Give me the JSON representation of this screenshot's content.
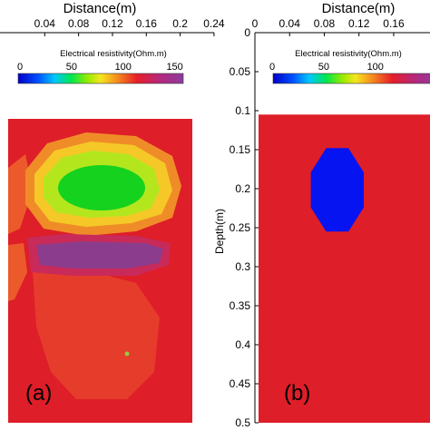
{
  "chart_data": [
    {
      "type": "heatmap",
      "panel_label": "(a)",
      "xlabel": "Distance(m)",
      "x_ticks": [
        "0.04",
        "0.08",
        "0.12",
        "0.16",
        "0.2",
        "0.24"
      ],
      "x_tick_values": [
        0.04,
        0.08,
        0.12,
        0.16,
        0.2,
        0.24
      ],
      "xlim": [
        0,
        0.24
      ],
      "ylim": [
        0,
        0.5
      ],
      "data_extent": {
        "x": [
          0.0,
          0.16
        ],
        "y": [
          0.11,
          0.5
        ]
      },
      "colorbar": {
        "label": "Electrical resistivity(Ohm.m)",
        "ticks": [
          "0",
          "50",
          "100",
          "150"
        ],
        "tick_values": [
          0,
          50,
          100,
          150
        ],
        "range": [
          0,
          160
        ]
      },
      "anomalies": [
        {
          "kind": "low_resistivity_center",
          "x": 0.082,
          "y": 0.2,
          "value": 55
        },
        {
          "kind": "low_resistivity_ring",
          "x": 0.082,
          "y": 0.2,
          "value": 80
        },
        {
          "kind": "high_resistivity_band",
          "x": 0.08,
          "y_range": [
            0.265,
            0.29
          ],
          "value": 145
        },
        {
          "kind": "background",
          "value": 110
        }
      ]
    },
    {
      "type": "heatmap",
      "panel_label": "(b)",
      "xlabel": "Distance(m)",
      "ylabel": "Depth(m)",
      "x_ticks": [
        "0",
        "0.04",
        "0.08",
        "0.12",
        "0.16"
      ],
      "x_tick_values": [
        0,
        0.04,
        0.08,
        0.12,
        0.16
      ],
      "xlim": [
        0,
        0.18
      ],
      "y_ticks": [
        "0",
        "0.05",
        "0.1",
        "0.15",
        "0.2",
        "0.25",
        "0.3",
        "0.35",
        "0.4",
        "0.45",
        "0.5"
      ],
      "y_tick_values": [
        0,
        0.05,
        0.1,
        0.15,
        0.2,
        0.25,
        0.3,
        0.35,
        0.4,
        0.45,
        0.5
      ],
      "ylim": [
        0,
        0.5
      ],
      "colorbar": {
        "label": "Electrical resistivity(Ohm.m)",
        "ticks": [
          "0",
          "50",
          "100"
        ],
        "tick_values": [
          0,
          50,
          100
        ],
        "range": [
          0,
          160
        ]
      },
      "background": {
        "value": 110,
        "y_range": [
          0.105,
          0.5
        ]
      },
      "anomaly": {
        "shape": "octagon",
        "value": 0,
        "x_range": [
          0.0645,
          0.1255
        ],
        "y_range": [
          0.148,
          0.255
        ]
      }
    }
  ],
  "colors": {
    "background_red": "#de1e28",
    "blue": "#0514f0",
    "green": "#14d21e",
    "yellow_green": "#b4e61e",
    "yellow": "#ebe128",
    "orange": "#f08c28",
    "purple": "#8c3c8c"
  }
}
